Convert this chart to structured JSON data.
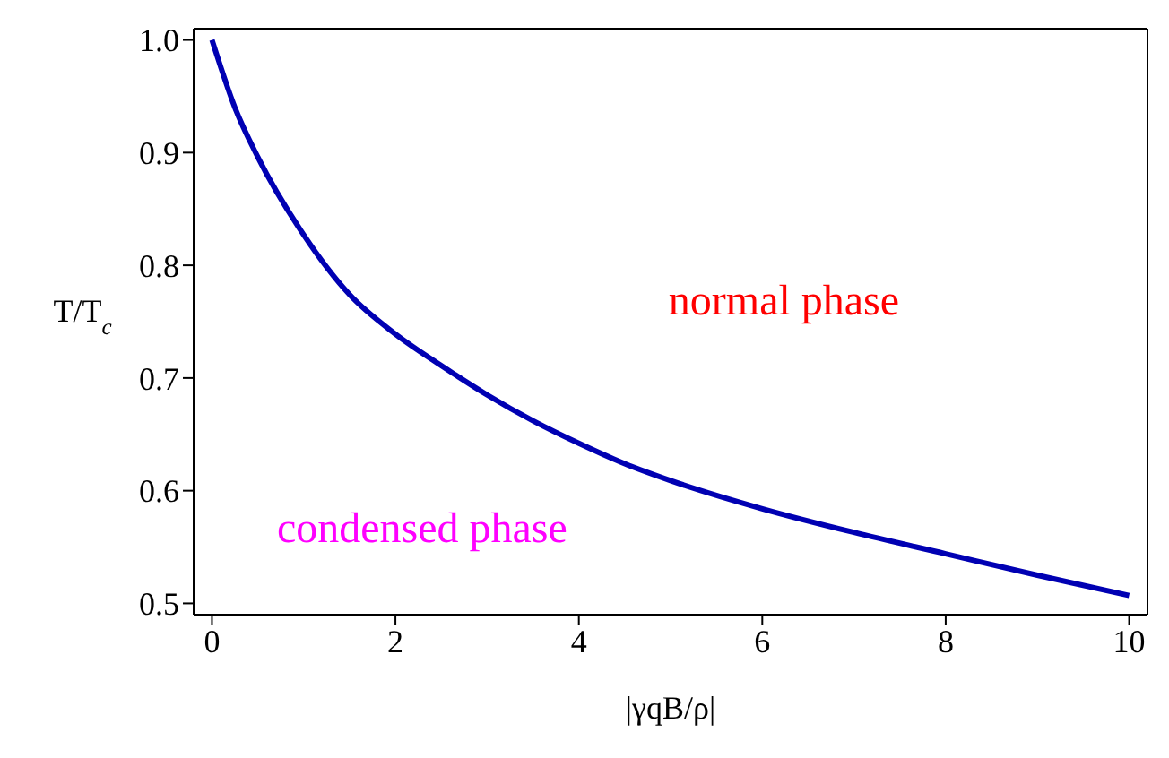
{
  "chart_data": {
    "type": "line",
    "xlabel": "|γqB/ρ|",
    "ylabel": "T/T$_{c}$",
    "x": [
      0,
      0.25,
      0.5,
      1,
      1.5,
      2,
      2.5,
      3,
      3.5,
      4,
      4.5,
      5,
      6,
      7,
      8,
      9,
      10
    ],
    "series": [
      {
        "color": "#0000b3",
        "values": [
          1.0,
          0.94,
          0.896,
          0.827,
          0.774,
          0.739,
          0.711,
          0.685,
          0.662,
          0.642,
          0.624,
          0.609,
          0.584,
          0.563,
          0.544,
          0.525,
          0.507
        ]
      }
    ],
    "xlim": [
      -0.2,
      10.2
    ],
    "ylim": [
      0.49,
      1.01
    ],
    "xticks": [
      0,
      2,
      4,
      6,
      8,
      10
    ],
    "yticks": [
      0.5,
      0.6,
      0.7,
      0.8,
      0.9,
      {
        "value": 1,
        "label": "1.0"
      }
    ],
    "annotations": [
      "normal phase",
      "condensed phase"
    ],
    "marker": "none",
    "line_style": "solid"
  }
}
